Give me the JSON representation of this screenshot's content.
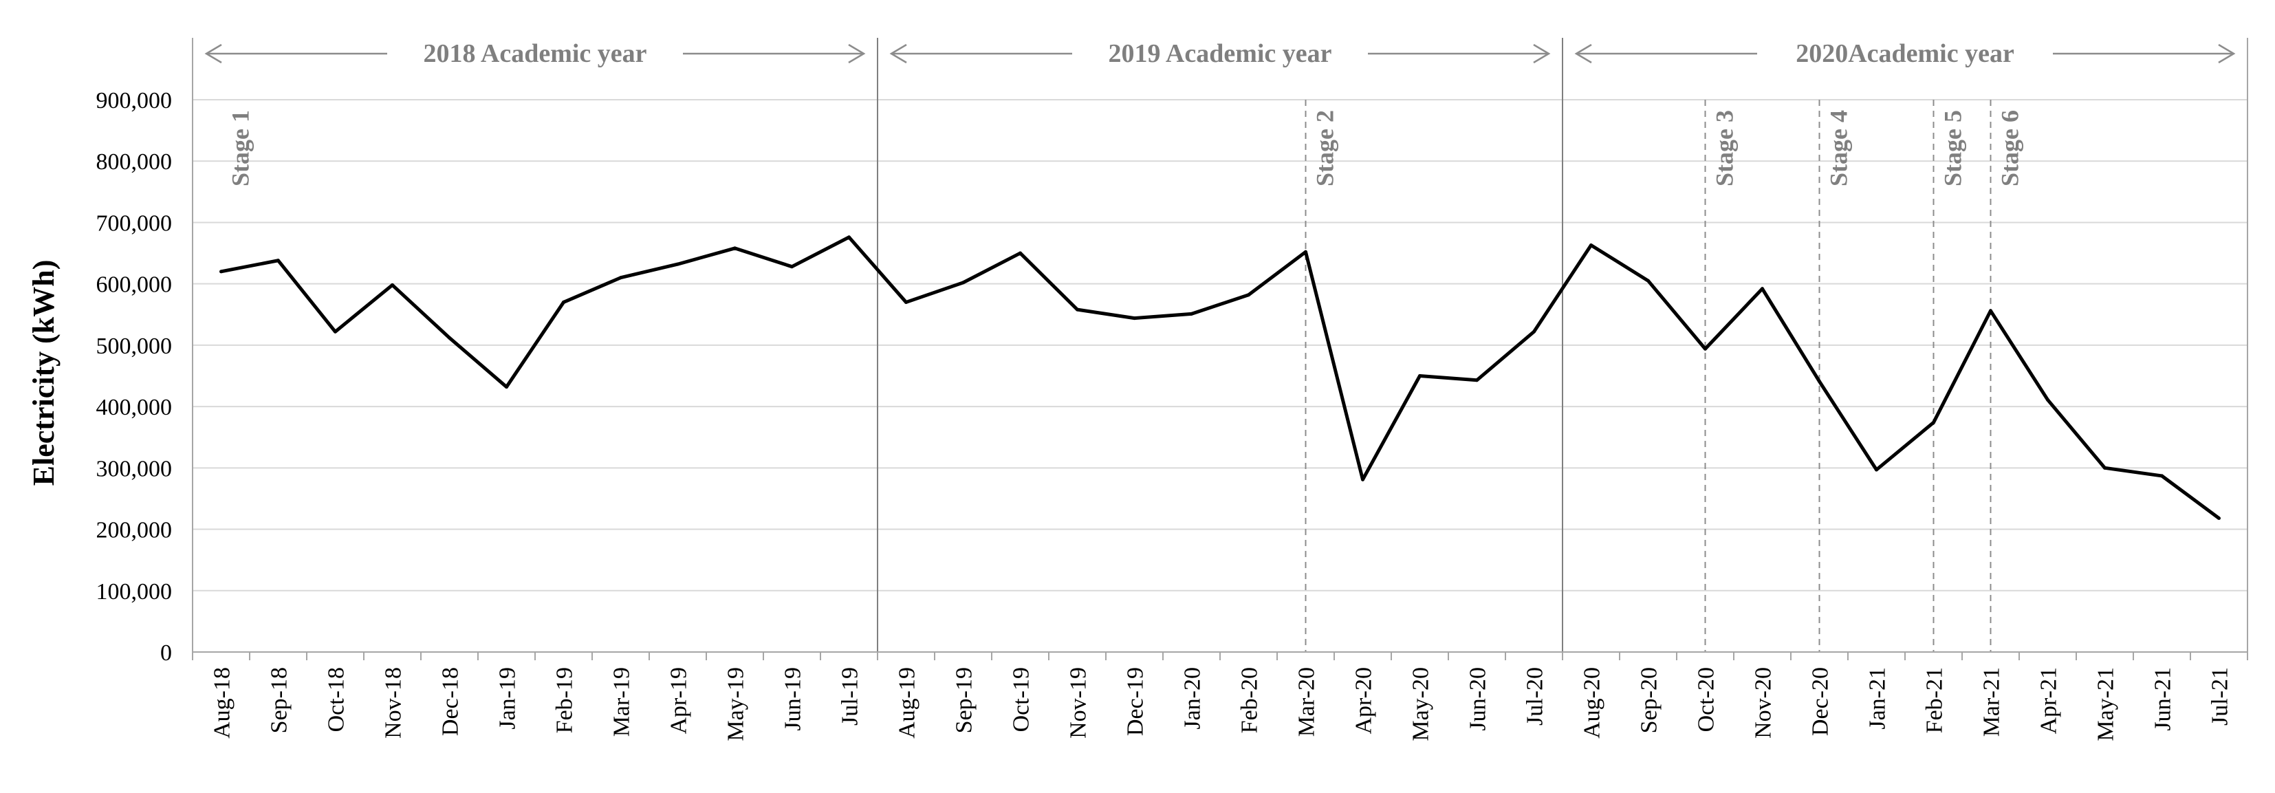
{
  "chart_data": {
    "type": "line",
    "ylabel": "Electricity (kWh)",
    "xlabel": "",
    "ylim": [
      0,
      900000
    ],
    "yticks": [
      "0",
      "100,000",
      "200,000",
      "300,000",
      "400,000",
      "500,000",
      "600,000",
      "700,000",
      "800,000",
      "900,000"
    ],
    "grid": true,
    "categories": [
      "Aug-18",
      "Sep-18",
      "Oct-18",
      "Nov-18",
      "Dec-18",
      "Jan-19",
      "Feb-19",
      "Mar-19",
      "Apr-19",
      "May-19",
      "Jun-19",
      "Jul-19",
      "Aug-19",
      "Sep-19",
      "Oct-19",
      "Nov-19",
      "Dec-19",
      "Jan-20",
      "Feb-20",
      "Mar-20",
      "Apr-20",
      "May-20",
      "Jun-20",
      "Jul-20",
      "Aug-20",
      "Sep-20",
      "Oct-20",
      "Nov-20",
      "Dec-20",
      "Jan-21",
      "Feb-21",
      "Mar-21",
      "Apr-21",
      "May-21",
      "Jun-21",
      "Jul-21"
    ],
    "series": [
      {
        "values": [
          620000,
          638000,
          522000,
          598000,
          512000,
          432000,
          570000,
          610000,
          632000,
          658000,
          628000,
          676000,
          570000,
          602000,
          650000,
          558000,
          544000,
          551000,
          582000,
          652000,
          281000,
          450000,
          443000,
          522000,
          663000,
          605000,
          494000,
          592000,
          441000,
          297000,
          374000,
          556000,
          411000,
          300000,
          287000,
          218000
        ]
      }
    ],
    "academic_years": [
      {
        "label": "2018 Academic year",
        "start": "Aug-18",
        "end": "Jul-19"
      },
      {
        "label": "2019 Academic year",
        "start": "Aug-19",
        "end": "Jul-20"
      },
      {
        "label": "2020Academic year",
        "start": "Aug-20",
        "end": "Jul-21"
      }
    ],
    "stages": [
      {
        "label": "Stage 1",
        "at": "Aug-18",
        "line": false
      },
      {
        "label": "Stage 2",
        "at": "Mar-20",
        "line": true
      },
      {
        "label": "Stage 3",
        "at": "Oct-20",
        "line": true
      },
      {
        "label": "Stage 4",
        "at": "Dec-20",
        "line": true
      },
      {
        "label": "Stage 5",
        "at": "Feb-21",
        "line": true
      },
      {
        "label": "Stage 6",
        "at": "Mar-21",
        "line": true
      }
    ]
  }
}
